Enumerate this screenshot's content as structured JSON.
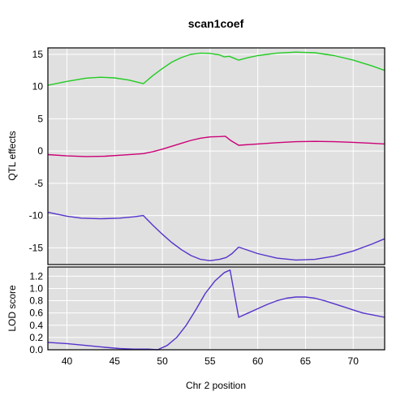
{
  "colors": {
    "panel_bg": "#e0e0e0",
    "grid": "#ffffff",
    "frame": "#000000",
    "green": "#22cc22",
    "magenta": "#cc0077",
    "blue": "#5533cc"
  },
  "chart_data": [
    {
      "type": "line",
      "title": "scan1coef",
      "xlabel": "",
      "ylabel": "QTL effects",
      "xlim": [
        38,
        73.3
      ],
      "ylim": [
        -17.6,
        16
      ],
      "grid": true,
      "x_ticks": [
        40,
        45,
        50,
        55,
        60,
        65,
        70
      ],
      "y_ticks": [
        -15,
        -10,
        -5,
        0,
        5,
        10,
        15
      ],
      "y_tick_labels": [
        "-15",
        "-10",
        "-5",
        "0",
        "5",
        "10",
        "15"
      ],
      "series": [
        {
          "color": "green",
          "points": [
            [
              38,
              10.2
            ],
            [
              40,
              10.8
            ],
            [
              42,
              11.3
            ],
            [
              43.5,
              11.45
            ],
            [
              45,
              11.35
            ],
            [
              46.5,
              11.0
            ],
            [
              48,
              10.45
            ],
            [
              49,
              11.7
            ],
            [
              50,
              12.8
            ],
            [
              51,
              13.8
            ],
            [
              52,
              14.5
            ],
            [
              53,
              15.0
            ],
            [
              54,
              15.2
            ],
            [
              55,
              15.15
            ],
            [
              56,
              14.9
            ],
            [
              56.5,
              14.6
            ],
            [
              57,
              14.7
            ],
            [
              57.5,
              14.4
            ],
            [
              58,
              14.1
            ],
            [
              59,
              14.5
            ],
            [
              60,
              14.8
            ],
            [
              62,
              15.2
            ],
            [
              64,
              15.35
            ],
            [
              66,
              15.25
            ],
            [
              68,
              14.8
            ],
            [
              70,
              14.1
            ],
            [
              72,
              13.2
            ],
            [
              73.3,
              12.5
            ]
          ]
        },
        {
          "color": "magenta",
          "points": [
            [
              38,
              -0.55
            ],
            [
              40,
              -0.75
            ],
            [
              42,
              -0.85
            ],
            [
              44,
              -0.8
            ],
            [
              46,
              -0.6
            ],
            [
              48,
              -0.4
            ],
            [
              49,
              -0.1
            ],
            [
              50,
              0.3
            ],
            [
              51,
              0.75
            ],
            [
              52,
              1.2
            ],
            [
              53,
              1.65
            ],
            [
              54,
              2.0
            ],
            [
              55,
              2.2
            ],
            [
              56,
              2.25
            ],
            [
              56.6,
              2.3
            ],
            [
              57.2,
              1.6
            ],
            [
              58,
              0.9
            ],
            [
              60,
              1.1
            ],
            [
              62,
              1.3
            ],
            [
              64,
              1.45
            ],
            [
              66,
              1.5
            ],
            [
              68,
              1.45
            ],
            [
              70,
              1.35
            ],
            [
              72,
              1.2
            ],
            [
              73.3,
              1.1
            ]
          ]
        },
        {
          "color": "blue",
          "points": [
            [
              38,
              -9.5
            ],
            [
              40,
              -10.1
            ],
            [
              41.5,
              -10.4
            ],
            [
              43.5,
              -10.5
            ],
            [
              45.5,
              -10.4
            ],
            [
              47,
              -10.2
            ],
            [
              48,
              -10.0
            ],
            [
              49,
              -11.5
            ],
            [
              50,
              -12.9
            ],
            [
              51,
              -14.2
            ],
            [
              52,
              -15.3
            ],
            [
              53,
              -16.2
            ],
            [
              54,
              -16.8
            ],
            [
              55,
              -17.0
            ],
            [
              56,
              -16.8
            ],
            [
              56.7,
              -16.5
            ],
            [
              57.3,
              -15.9
            ],
            [
              58,
              -14.9
            ],
            [
              59,
              -15.4
            ],
            [
              60,
              -15.9
            ],
            [
              62,
              -16.6
            ],
            [
              64,
              -16.9
            ],
            [
              66,
              -16.8
            ],
            [
              68,
              -16.3
            ],
            [
              70,
              -15.5
            ],
            [
              72,
              -14.4
            ],
            [
              73.3,
              -13.6
            ]
          ]
        }
      ]
    },
    {
      "type": "line",
      "title": "",
      "xlabel": "Chr 2 position",
      "ylabel": "LOD score",
      "xlim": [
        38,
        73.3
      ],
      "ylim": [
        0,
        1.35
      ],
      "grid": true,
      "x_ticks": [
        40,
        45,
        50,
        55,
        60,
        65,
        70
      ],
      "x_tick_labels": [
        "40",
        "45",
        "50",
        "55",
        "60",
        "65",
        "70"
      ],
      "y_ticks": [
        0,
        0.2,
        0.4,
        0.6,
        0.8,
        1.0,
        1.2
      ],
      "y_tick_labels": [
        "0.0",
        "0.2",
        "0.4",
        "0.6",
        "0.8",
        "1.0",
        "1.2"
      ],
      "series": [
        {
          "color": "blue",
          "points": [
            [
              38,
              0.12
            ],
            [
              40,
              0.1
            ],
            [
              42,
              0.07
            ],
            [
              44,
              0.04
            ],
            [
              45.5,
              0.02
            ],
            [
              47,
              0.01
            ],
            [
              48.5,
              0.01
            ],
            [
              49.5,
              0.0
            ],
            [
              50.5,
              0.07
            ],
            [
              51.5,
              0.2
            ],
            [
              52.5,
              0.4
            ],
            [
              53.5,
              0.65
            ],
            [
              54.5,
              0.92
            ],
            [
              55.5,
              1.12
            ],
            [
              56.5,
              1.26
            ],
            [
              57.1,
              1.3
            ],
            [
              58,
              0.53
            ],
            [
              59,
              0.6
            ],
            [
              60,
              0.67
            ],
            [
              61,
              0.74
            ],
            [
              62,
              0.8
            ],
            [
              63,
              0.84
            ],
            [
              64,
              0.86
            ],
            [
              65,
              0.86
            ],
            [
              66,
              0.84
            ],
            [
              67,
              0.8
            ],
            [
              68,
              0.75
            ],
            [
              69,
              0.7
            ],
            [
              70,
              0.65
            ],
            [
              71,
              0.6
            ],
            [
              72,
              0.57
            ],
            [
              73.3,
              0.53
            ]
          ]
        }
      ]
    }
  ]
}
